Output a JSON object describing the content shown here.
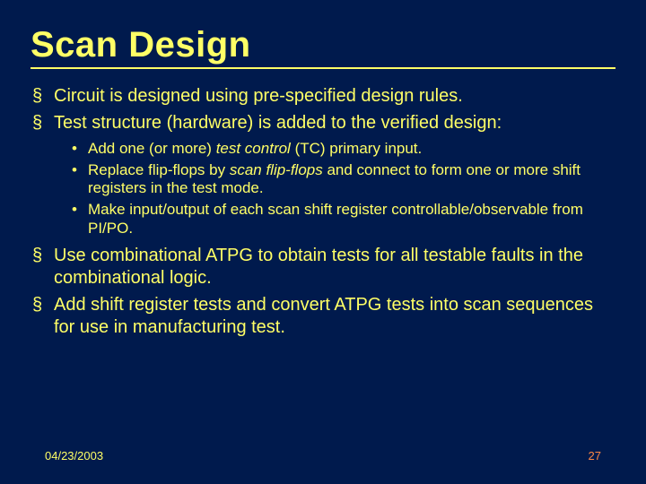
{
  "colors": {
    "background": "#001a4d",
    "text": "#ffff66",
    "accent": "#ff8844"
  },
  "title": "Scan Design",
  "bullets": [
    {
      "text": "Circuit is designed using pre-specified design rules."
    },
    {
      "text": "Test structure (hardware) is added to the verified design:",
      "sub": [
        {
          "pre": "Add one (or more) ",
          "em": "test control",
          "post": " (TC) primary input."
        },
        {
          "pre": "Replace flip-flops by ",
          "em": "scan flip-flops",
          "post": " and connect to form one or more shift registers in the test mode."
        },
        {
          "pre": "Make input/output of each scan shift register controllable/observable from PI/PO.",
          "em": "",
          "post": ""
        }
      ]
    },
    {
      "text": "Use combinational ATPG to obtain tests for all testable faults in the combinational logic."
    },
    {
      "text": "Add shift register tests and convert ATPG tests into scan sequences for use in manufacturing test."
    }
  ],
  "footer": {
    "date": "04/23/2003",
    "page": "27"
  }
}
